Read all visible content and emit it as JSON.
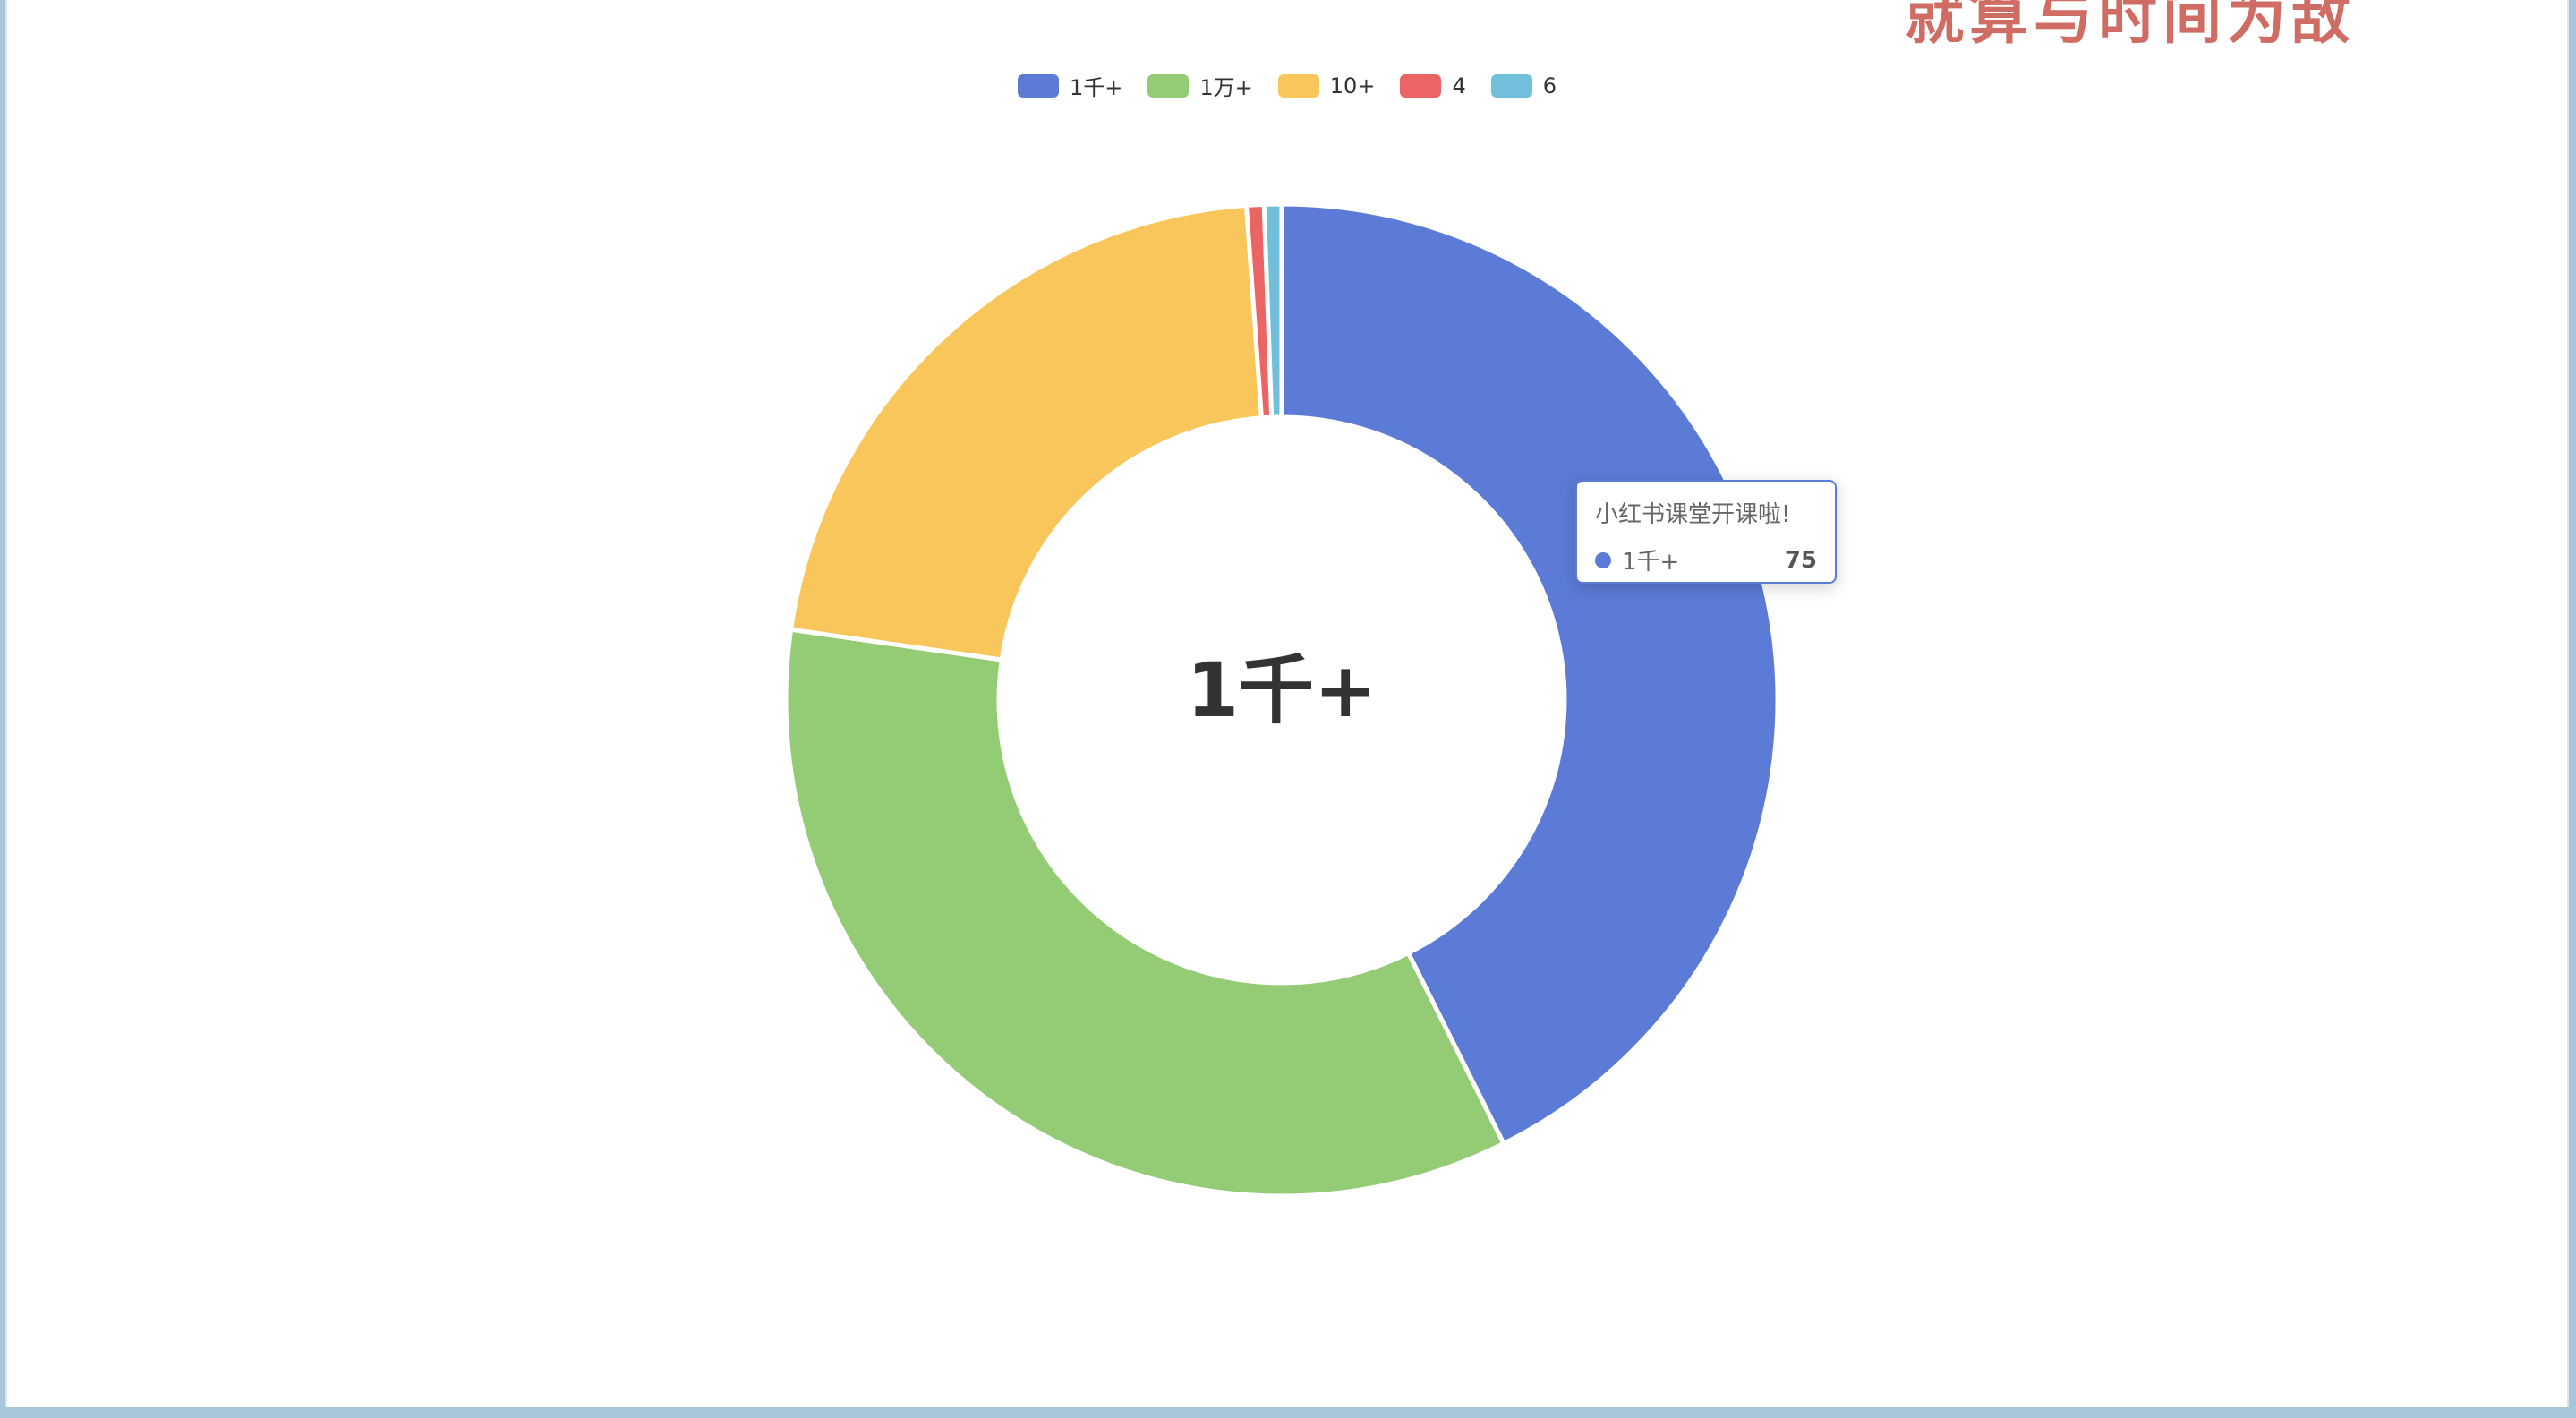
{
  "watermark": "就算与时间为敌",
  "center_label": "1千+",
  "tooltip": {
    "title": "小红书课堂开课啦!",
    "series_label": "1千+",
    "value": "75"
  },
  "chart_data": {
    "type": "pie",
    "donut": true,
    "legend_position": "top-center",
    "slices": [
      {
        "label": "1千+",
        "value": 75,
        "color": "#5b7bd6"
      },
      {
        "label": "1万+",
        "value": 61,
        "color": "#93cc75"
      },
      {
        "label": "10+",
        "value": 38,
        "color": "#f8c65b"
      },
      {
        "label": "4",
        "value": 1,
        "color": "#ec6565"
      },
      {
        "label": "6",
        "value": 1,
        "color": "#72bfdc"
      }
    ]
  }
}
